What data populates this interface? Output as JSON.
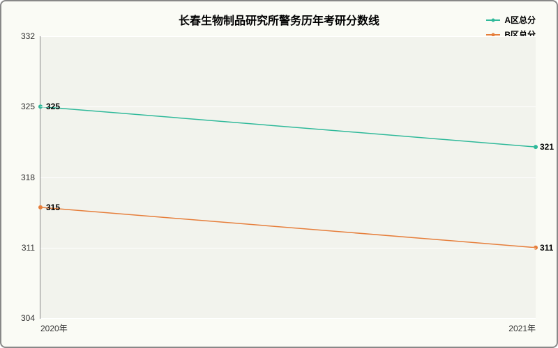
{
  "chart": {
    "type": "line",
    "title": "长春生物制品研究所警务历年考研分数线",
    "title_fontsize": 16,
    "background_color": "#fafbf5",
    "plot_background": "#f2f3ed",
    "grid_color": "#ffffff",
    "border_color": "#888888",
    "x": {
      "categories": [
        "2020年",
        "2021年"
      ]
    },
    "y": {
      "min": 304,
      "max": 332,
      "ticks": [
        304,
        311,
        318,
        325,
        332
      ]
    },
    "series": [
      {
        "name": "A区总分",
        "color": "#2fb99a",
        "values": [
          325,
          321
        ],
        "line_width": 1.5,
        "marker": "circle"
      },
      {
        "name": "B区总分",
        "color": "#e67e3b",
        "values": [
          315,
          311
        ],
        "line_width": 1.5,
        "marker": "circle"
      }
    ],
    "legend": {
      "position": "top-right",
      "fontsize": 12
    },
    "label_fontsize": 12
  }
}
